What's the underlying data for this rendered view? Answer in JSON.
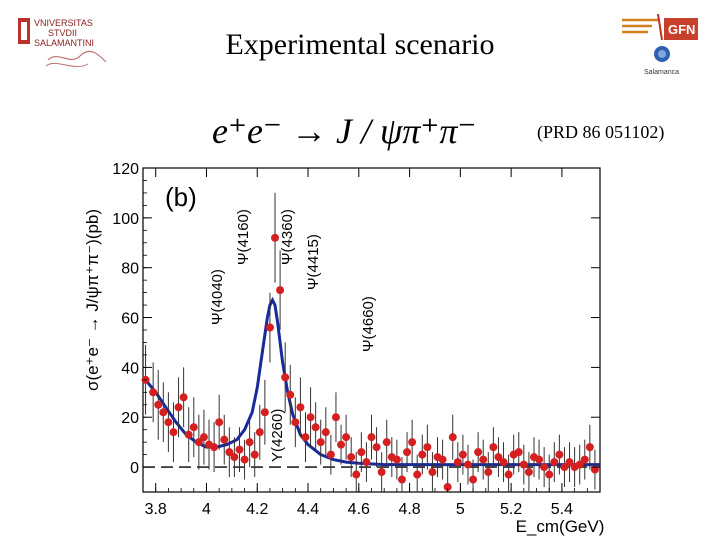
{
  "page": {
    "title": "Experimental scenario",
    "formula": "e⁺e⁻ → J / ψπ⁺π⁻",
    "reference": "(PRD 86 051102)",
    "logo_left": {
      "line1": "VNIVERSITAS",
      "line2": "STVDII",
      "line3": "SALAMANTINI"
    },
    "logo_right": {
      "line1": "GFN",
      "line2": "Salamanca"
    }
  },
  "chart_data": {
    "type": "scatter",
    "panel_label": "(b)",
    "xlabel": "E_cm(GeV)",
    "ylabel": "σ(e⁺e⁻ → J/ψπ⁺π⁻)(pb)",
    "xlim": [
      3.75,
      5.55
    ],
    "ylim": [
      -10,
      120
    ],
    "x_ticks": [
      "3.8",
      "4",
      "4.2",
      "4.4",
      "4.6",
      "4.8",
      "5",
      "5.2",
      "5.4"
    ],
    "y_ticks": [
      "0",
      "20",
      "40",
      "60",
      "80",
      "100",
      "120"
    ],
    "colors": {
      "points": "#d42020",
      "fit": "#1a2a9a",
      "errors": "#333333"
    },
    "annotations": [
      {
        "label": "Ψ(4040)",
        "x": 4.04
      },
      {
        "label": "Ψ(4160)",
        "x": 4.16
      },
      {
        "label": "Y(4260)",
        "x": 4.26
      },
      {
        "label": "Ψ(4360)",
        "x": 4.36
      },
      {
        "label": "Ψ(4415)",
        "x": 4.42
      },
      {
        "label": "Ψ(4660)",
        "x": 4.66
      }
    ],
    "series": [
      {
        "type": "points",
        "x": [
          3.76,
          3.79,
          3.81,
          3.83,
          3.85,
          3.87,
          3.89,
          3.91,
          3.93,
          3.95,
          3.97,
          3.99,
          4.01,
          4.03,
          4.05,
          4.07,
          4.09,
          4.11,
          4.13,
          4.15,
          4.17,
          4.19,
          4.21,
          4.23,
          4.25,
          4.27,
          4.29,
          4.31,
          4.33,
          4.35,
          4.37,
          4.39,
          4.41,
          4.43,
          4.45,
          4.47,
          4.49,
          4.51,
          4.53,
          4.55,
          4.57,
          4.59,
          4.61,
          4.63,
          4.65,
          4.67,
          4.69,
          4.71,
          4.73,
          4.75,
          4.77,
          4.79,
          4.81,
          4.83,
          4.85,
          4.87,
          4.89,
          4.91,
          4.93,
          4.95,
          4.97,
          4.99,
          5.01,
          5.03,
          5.05,
          5.07,
          5.09,
          5.11,
          5.13,
          5.15,
          5.17,
          5.19,
          5.21,
          5.23,
          5.25,
          5.27,
          5.29,
          5.31,
          5.33,
          5.35,
          5.37,
          5.39,
          5.41,
          5.43,
          5.45,
          5.47,
          5.49,
          5.51,
          5.53
        ],
        "y": [
          35,
          30,
          25,
          22,
          18,
          14,
          24,
          28,
          13,
          16,
          10,
          12,
          9,
          8,
          18,
          11,
          6,
          4,
          7,
          3,
          10,
          5,
          14,
          22,
          56,
          92,
          71,
          36,
          29,
          18,
          24,
          12,
          20,
          16,
          10,
          14,
          5,
          20,
          9,
          12,
          4,
          -3,
          6,
          2,
          12,
          8,
          -2,
          10,
          4,
          3,
          -5,
          6,
          10,
          -3,
          5,
          8,
          -2,
          4,
          3,
          -8,
          12,
          2,
          5,
          1,
          -5,
          6,
          3,
          -2,
          8,
          4,
          2,
          -3,
          5,
          6,
          1,
          -2,
          4,
          3,
          0,
          -3,
          2,
          5,
          0,
          2,
          0,
          1,
          3,
          8,
          -1
        ],
        "err": [
          14,
          12,
          14,
          12,
          12,
          12,
          12,
          12,
          11,
          12,
          11,
          11,
          10,
          10,
          11,
          10,
          10,
          8,
          9,
          8,
          10,
          9,
          11,
          13,
          14,
          18,
          16,
          14,
          12,
          10,
          12,
          10,
          12,
          10,
          9,
          10,
          8,
          10,
          8,
          9,
          8,
          9,
          8,
          8,
          9,
          8,
          8,
          9,
          8,
          8,
          9,
          8,
          9,
          8,
          8,
          9,
          8,
          8,
          8,
          9,
          9,
          8,
          8,
          8,
          8,
          8,
          8,
          8,
          8,
          8,
          8,
          8,
          8,
          8,
          8,
          8,
          8,
          8,
          8,
          8,
          8,
          8,
          8,
          8,
          8,
          8,
          8,
          9,
          8
        ]
      },
      {
        "type": "fit",
        "x": [
          3.76,
          3.8,
          3.84,
          3.88,
          3.92,
          3.96,
          4.0,
          4.04,
          4.08,
          4.12,
          4.15,
          4.18,
          4.2,
          4.22,
          4.24,
          4.25,
          4.26,
          4.27,
          4.28,
          4.3,
          4.32,
          4.34,
          4.37,
          4.4,
          4.45,
          4.5,
          4.55,
          4.6,
          4.7,
          4.8,
          4.9,
          5.0,
          5.1,
          5.2,
          5.3,
          5.4,
          5.5,
          5.55
        ],
        "y": [
          35,
          30,
          24,
          18,
          13,
          10,
          8,
          8,
          9,
          11,
          15,
          22,
          32,
          46,
          60,
          65,
          67,
          65,
          58,
          42,
          30,
          21,
          13,
          9,
          5,
          3,
          2,
          1.5,
          1,
          1,
          1,
          1,
          1,
          1,
          1,
          1,
          1,
          1
        ]
      }
    ]
  }
}
